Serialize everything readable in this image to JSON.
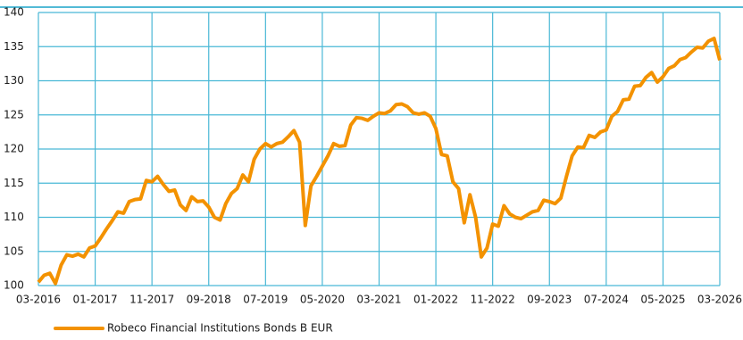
{
  "chart_data": {
    "type": "line",
    "categories": [
      "03-2016",
      null,
      null,
      null,
      null,
      null,
      null,
      null,
      null,
      null,
      "01-2017",
      null,
      null,
      null,
      null,
      null,
      null,
      null,
      null,
      null,
      "11-2017",
      null,
      null,
      null,
      null,
      null,
      null,
      null,
      null,
      null,
      "09-2018",
      null,
      null,
      null,
      null,
      null,
      null,
      null,
      null,
      null,
      "07-2019",
      null,
      null,
      null,
      null,
      null,
      null,
      null,
      null,
      null,
      "05-2020",
      null,
      null,
      null,
      null,
      null,
      null,
      null,
      null,
      null,
      "03-2021",
      null,
      null,
      null,
      null,
      null,
      null,
      null,
      null,
      null,
      "01-2022",
      null,
      null,
      null,
      null,
      null,
      null,
      null,
      null,
      null,
      "11-2022",
      null,
      null,
      null,
      null,
      null,
      null,
      null,
      null,
      null,
      "09-2023",
      null,
      null,
      null,
      null,
      null,
      null,
      null,
      null,
      null,
      "07-2024",
      null,
      null,
      null,
      null,
      null,
      null,
      null,
      null,
      null,
      "05-2025",
      null,
      null,
      null,
      null,
      null,
      null,
      null,
      null,
      null,
      "03-2026"
    ],
    "series": [
      {
        "name": "Robeco Financial Institutions Bonds B EUR",
        "color": "#f39200",
        "values": [
          100.5,
          101.5,
          101.8,
          100.3,
          103,
          104.5,
          104.3,
          104.6,
          104.2,
          105.5,
          105.8,
          107,
          108.3,
          109.5,
          110.8,
          110.6,
          112.3,
          112.6,
          112.7,
          115.4,
          115.2,
          116,
          114.8,
          113.8,
          114,
          111.8,
          111,
          113,
          112.3,
          112.4,
          111.5,
          110,
          109.6,
          112,
          113.5,
          114.2,
          116.2,
          115.2,
          118.5,
          120,
          120.8,
          120.3,
          120.8,
          121,
          121.8,
          122.7,
          121,
          108.8,
          114.6,
          116,
          117.5,
          119,
          120.8,
          120.4,
          120.5,
          123.5,
          124.6,
          124.5,
          124.2,
          124.8,
          125.3,
          125.2,
          125.6,
          126.5,
          126.6,
          126.2,
          125.3,
          125.1,
          125.3,
          124.8,
          123,
          119.2,
          119,
          115.2,
          114.2,
          109.2,
          113.3,
          110,
          104.2,
          105.5,
          109,
          108.7,
          111.7,
          110.5,
          110,
          109.8,
          110.3,
          110.8,
          111,
          112.5,
          112.3,
          112,
          112.8,
          116,
          119,
          120.3,
          120.2,
          122,
          121.7,
          122.5,
          122.8,
          124.8,
          125.5,
          127.2,
          127.3,
          129.2,
          129.3,
          130.5,
          131.2,
          129.8,
          130.6,
          131.8,
          132.2,
          133.1,
          133.4,
          134.2,
          134.9,
          134.8,
          135.8,
          136.2,
          133
        ]
      }
    ],
    "ylim": [
      100,
      140
    ],
    "yticks": [
      100,
      105,
      110,
      115,
      120,
      125,
      130,
      135,
      140
    ],
    "grid": true
  }
}
